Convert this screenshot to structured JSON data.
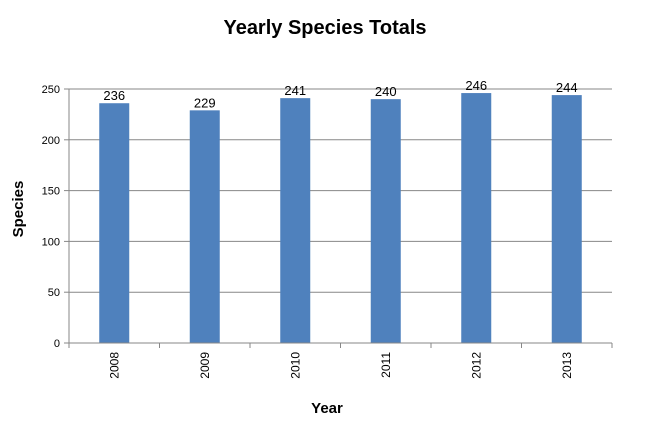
{
  "chart_data": {
    "type": "bar",
    "title": "Yearly Species Totals",
    "xlabel": "Year",
    "ylabel": "Species",
    "categories": [
      "2008",
      "2009",
      "2010",
      "2011",
      "2012",
      "2013"
    ],
    "values": [
      236,
      229,
      241,
      240,
      246,
      244
    ],
    "ylim": [
      0,
      250
    ],
    "yticks": [
      0,
      50,
      100,
      150,
      200,
      250
    ],
    "grid": true,
    "legend": "none",
    "bar_color": "#4F81BD"
  }
}
